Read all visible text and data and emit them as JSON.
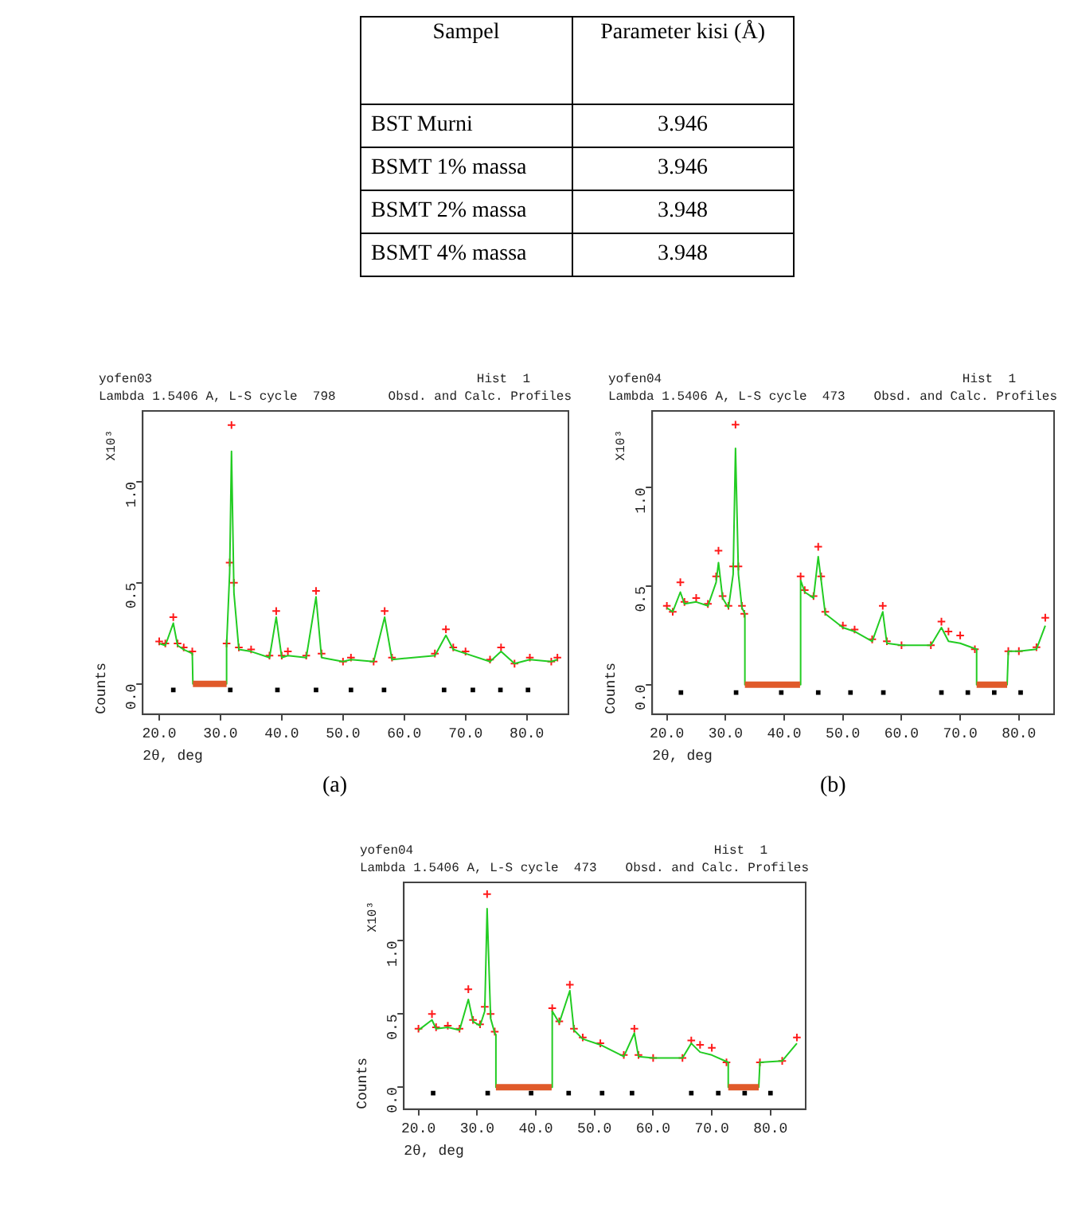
{
  "chart_data": [
    {
      "type": "other",
      "annotations": [
        "Sampel",
        "Parameter kisi (Å)",
        "BST Murni",
        "3.946",
        "BSMT 1% massa",
        "3.946",
        "BSMT 2% massa",
        "3.948",
        "BSMT 4% massa",
        "3.948"
      ]
    },
    {
      "type": "scatter",
      "title": "yofen03",
      "subtitle": "Lambda 1.5406 A, L-S cycle  798",
      "xlabel": "2θ, deg",
      "ylabel": "Counts",
      "annotations": [
        "Hist  1",
        "Obsd. and Calc. Profiles",
        "X10³",
        "(a)"
      ],
      "xlim": [
        17.3,
        86.8
      ],
      "ylim": [
        -0.15,
        1.35
      ],
      "xticks": [
        {
          "value": 20,
          "label": "20.0"
        },
        {
          "value": 30,
          "label": "30.0"
        },
        {
          "value": 40,
          "label": "40.0"
        },
        {
          "value": 50,
          "label": "50.0"
        },
        {
          "value": 60,
          "label": "60.0"
        },
        {
          "value": 70,
          "label": "70.0"
        },
        {
          "value": 80,
          "label": "80.0"
        }
      ],
      "yticks": [
        {
          "value": 0,
          "label": "0.0"
        },
        {
          "value": 0.5,
          "label": "0.5"
        },
        {
          "value": 1,
          "label": "1.0"
        }
      ],
      "series": [
        {
          "type": "line",
          "color": "#e05a2a",
          "marker": "none",
          "x": [
            25.5,
            31
          ],
          "values": [
            0,
            0
          ]
        },
        {
          "type": "line",
          "color": "#22cc22",
          "marker": "none",
          "x": [
            20,
            21,
            22.3,
            23,
            24,
            25.4,
            25.5,
            31,
            31,
            31.5,
            31.8,
            32.2,
            33,
            35,
            38,
            39.1,
            40,
            41,
            44,
            45.6,
            46.5,
            50,
            51.3,
            55,
            56.8,
            58,
            65,
            66.8,
            68,
            70,
            74,
            75.8,
            78,
            80.5,
            84,
            85
          ],
          "values": [
            0.2,
            0.19,
            0.3,
            0.19,
            0.17,
            0.15,
            0,
            0,
            0.19,
            0.55,
            1.15,
            0.45,
            0.17,
            0.16,
            0.13,
            0.33,
            0.13,
            0.14,
            0.13,
            0.43,
            0.13,
            0.11,
            0.12,
            0.11,
            0.33,
            0.12,
            0.14,
            0.24,
            0.17,
            0.15,
            0.11,
            0.16,
            0.1,
            0.12,
            0.11,
            0.12
          ]
        },
        {
          "type": "scatter",
          "color": "#ff1a1a",
          "marker": "cross",
          "x": [
            20,
            21,
            22.3,
            23,
            24,
            25.4,
            31,
            31.5,
            31.8,
            32.2,
            33,
            35,
            38,
            39.1,
            40,
            41,
            44,
            45.6,
            46.5,
            50,
            51.3,
            55,
            56.8,
            58,
            65,
            66.8,
            68,
            70,
            74,
            75.8,
            78,
            80.5,
            84,
            85
          ],
          "values": [
            0.21,
            0.2,
            0.33,
            0.2,
            0.18,
            0.16,
            0.2,
            0.6,
            1.28,
            0.5,
            0.18,
            0.17,
            0.14,
            0.36,
            0.14,
            0.16,
            0.14,
            0.46,
            0.15,
            0.11,
            0.13,
            0.11,
            0.36,
            0.13,
            0.15,
            0.27,
            0.18,
            0.16,
            0.12,
            0.18,
            0.1,
            0.13,
            0.11,
            0.13
          ]
        },
        {
          "type": "scatter",
          "color": "#000000",
          "marker": "square",
          "x": [
            22.3,
            31.6,
            39.3,
            45.6,
            51.3,
            56.7,
            66.5,
            71.2,
            75.7,
            80.2
          ],
          "values": [
            -0.03,
            -0.03,
            -0.03,
            -0.03,
            -0.03,
            -0.03,
            -0.03,
            -0.03,
            -0.03,
            -0.03
          ]
        }
      ]
    },
    {
      "type": "scatter",
      "title": "yofen04",
      "subtitle": "Lambda 1.5406 A, L-S cycle  473",
      "xlabel": "2θ, deg",
      "ylabel": "Counts",
      "annotations": [
        "Hist  1",
        "Obsd. and Calc. Profiles",
        "X10³",
        "(b)"
      ],
      "xlim": [
        17.5,
        86
      ],
      "ylim": [
        -0.15,
        1.39
      ],
      "xticks": [
        {
          "value": 20,
          "label": "20.0"
        },
        {
          "value": 30,
          "label": "30.0"
        },
        {
          "value": 40,
          "label": "40.0"
        },
        {
          "value": 50,
          "label": "50.0"
        },
        {
          "value": 60,
          "label": "60.0"
        },
        {
          "value": 70,
          "label": "70.0"
        },
        {
          "value": 80,
          "label": "80.0"
        }
      ],
      "yticks": [
        {
          "value": 0,
          "label": "0.0"
        },
        {
          "value": 0.5,
          "label": "0.5"
        },
        {
          "value": 1,
          "label": "1.0"
        }
      ],
      "series": [
        {
          "type": "line",
          "color": "#e05a2a",
          "marker": "none",
          "x": [
            33.3,
            42.7
          ],
          "values": [
            0,
            0
          ]
        },
        {
          "type": "line",
          "color": "#e05a2a",
          "marker": "none",
          "x": [
            72.8,
            78
          ],
          "values": [
            0,
            0
          ]
        },
        {
          "type": "line",
          "color": "#22cc22",
          "marker": "none",
          "x": [
            20,
            21,
            22.3,
            23,
            25,
            27,
            28.4,
            28.8,
            29.5,
            30.5,
            31.3,
            31.7,
            32.2,
            32.8,
            33.3,
            33.3,
            42.7,
            42.8,
            43.5,
            45,
            45.8,
            46.3,
            47,
            50,
            52,
            55,
            56.8,
            57.5,
            60,
            65,
            66.8,
            68,
            70,
            72.8,
            72.8,
            78,
            78.2,
            80,
            83,
            84.5
          ],
          "values": [
            0.39,
            0.37,
            0.47,
            0.41,
            0.42,
            0.4,
            0.52,
            0.62,
            0.44,
            0.39,
            0.56,
            1.2,
            0.56,
            0.39,
            0.36,
            0,
            0,
            0.53,
            0.47,
            0.44,
            0.65,
            0.53,
            0.36,
            0.29,
            0.27,
            0.22,
            0.37,
            0.21,
            0.2,
            0.2,
            0.29,
            0.22,
            0.21,
            0.18,
            0,
            0,
            0.17,
            0.17,
            0.18,
            0.3
          ]
        },
        {
          "type": "scatter",
          "color": "#ff1a1a",
          "marker": "cross",
          "x": [
            20,
            21,
            22.3,
            23,
            25,
            27,
            28.4,
            28.8,
            29.5,
            30.5,
            31.3,
            31.7,
            32.2,
            32.8,
            33.2,
            42.8,
            43.5,
            45,
            45.8,
            46.3,
            47,
            50,
            52,
            55,
            56.8,
            57.5,
            60,
            65,
            66.8,
            68,
            70,
            72.5,
            78.2,
            80,
            83,
            84.5
          ],
          "values": [
            0.4,
            0.37,
            0.52,
            0.42,
            0.44,
            0.41,
            0.55,
            0.68,
            0.45,
            0.4,
            0.6,
            1.32,
            0.6,
            0.4,
            0.36,
            0.55,
            0.48,
            0.45,
            0.7,
            0.55,
            0.37,
            0.3,
            0.28,
            0.23,
            0.4,
            0.22,
            0.2,
            0.2,
            0.32,
            0.27,
            0.25,
            0.18,
            0.17,
            0.17,
            0.19,
            0.34
          ]
        },
        {
          "type": "scatter",
          "color": "#000000",
          "marker": "square",
          "x": [
            22.4,
            31.8,
            39.5,
            45.8,
            51.3,
            56.9,
            66.8,
            71.3,
            75.8,
            80.3
          ],
          "values": [
            -0.04,
            -0.04,
            -0.04,
            -0.04,
            -0.04,
            -0.04,
            -0.04,
            -0.04,
            -0.04,
            -0.04
          ]
        }
      ]
    },
    {
      "type": "scatter",
      "title": "yofen04",
      "subtitle": "Lambda 1.5406 A, L-S cycle  473",
      "xlabel": "2θ, deg",
      "ylabel": "Counts",
      "annotations": [
        "Hist  1",
        "Obsd. and Calc. Profiles",
        "X10³"
      ],
      "xlim": [
        17.5,
        86
      ],
      "ylim": [
        -0.15,
        1.4
      ],
      "xticks": [
        {
          "value": 20,
          "label": "20.0"
        },
        {
          "value": 30,
          "label": "30.0"
        },
        {
          "value": 40,
          "label": "40.0"
        },
        {
          "value": 50,
          "label": "50.0"
        },
        {
          "value": 60,
          "label": "60.0"
        },
        {
          "value": 70,
          "label": "70.0"
        },
        {
          "value": 80,
          "label": "80.0"
        }
      ],
      "yticks": [
        {
          "value": 0,
          "label": "0.0"
        },
        {
          "value": 0.5,
          "label": "0.5"
        },
        {
          "value": 1,
          "label": "1.0"
        }
      ],
      "series": [
        {
          "type": "line",
          "color": "#e05a2a",
          "marker": "none",
          "x": [
            33.2,
            42.7
          ],
          "values": [
            0,
            0
          ]
        },
        {
          "type": "line",
          "color": "#e05a2a",
          "marker": "none",
          "x": [
            72.8,
            78
          ],
          "values": [
            0,
            0
          ]
        },
        {
          "type": "line",
          "color": "#22cc22",
          "marker": "none",
          "x": [
            20,
            22.3,
            23,
            25,
            27,
            28.5,
            29.3,
            30.5,
            31.3,
            31.7,
            32.3,
            33,
            33.2,
            33.2,
            42.7,
            42.8,
            44,
            45.8,
            46.5,
            48,
            51,
            55,
            56.8,
            57.5,
            60,
            65,
            66.5,
            68,
            70,
            72.8,
            72.8,
            78,
            78.2,
            82,
            84.5
          ],
          "values": [
            0.39,
            0.46,
            0.4,
            0.41,
            0.39,
            0.6,
            0.45,
            0.42,
            0.52,
            1.22,
            0.47,
            0.37,
            0.36,
            0,
            0,
            0.52,
            0.44,
            0.66,
            0.39,
            0.33,
            0.29,
            0.21,
            0.37,
            0.21,
            0.2,
            0.2,
            0.3,
            0.24,
            0.22,
            0.17,
            0,
            0,
            0.17,
            0.18,
            0.3
          ]
        },
        {
          "type": "scatter",
          "color": "#ff1a1a",
          "marker": "cross",
          "x": [
            20,
            22.3,
            23,
            25,
            27,
            28.5,
            29.3,
            30.5,
            31.3,
            31.7,
            32.3,
            33,
            42.8,
            44,
            45.8,
            46.5,
            48,
            51,
            55,
            56.8,
            57.5,
            60,
            65,
            66.5,
            68,
            70,
            72.5,
            78.2,
            82,
            84.5
          ],
          "values": [
            0.4,
            0.5,
            0.41,
            0.42,
            0.4,
            0.67,
            0.46,
            0.43,
            0.55,
            1.32,
            0.5,
            0.38,
            0.54,
            0.45,
            0.7,
            0.4,
            0.34,
            0.3,
            0.22,
            0.4,
            0.22,
            0.2,
            0.2,
            0.32,
            0.29,
            0.27,
            0.17,
            0.17,
            0.18,
            0.34
          ]
        },
        {
          "type": "scatter",
          "color": "#000000",
          "marker": "square",
          "x": [
            22.5,
            31.8,
            39.2,
            45.6,
            51.3,
            56.4,
            66.5,
            71.1,
            75.6,
            80
          ],
          "values": [
            -0.04,
            -0.04,
            -0.04,
            -0.04,
            -0.04,
            -0.04,
            -0.04,
            -0.04,
            -0.04,
            -0.04
          ]
        }
      ]
    }
  ]
}
